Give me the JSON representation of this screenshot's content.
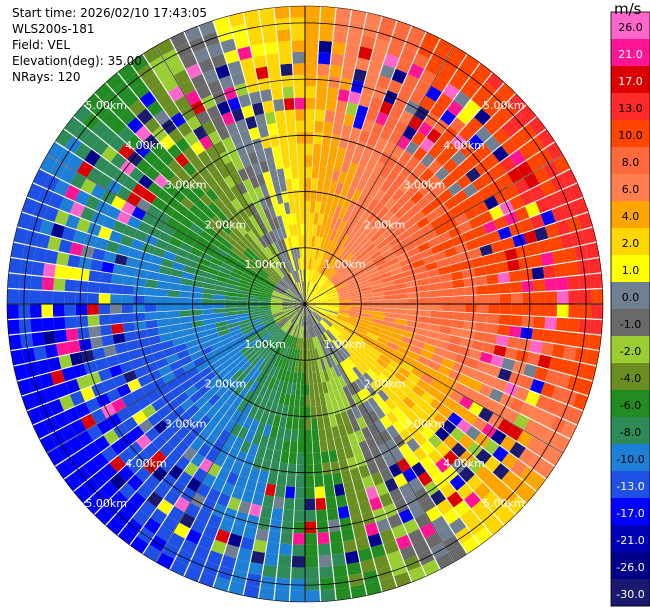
{
  "info": {
    "start_time": "Start time: 2026/02/10 17:43:05",
    "instrument": "WLS200s-181",
    "field": "Field: VEL",
    "elevation": "Elevation(deg): 35.00",
    "nrays": "NRays: 120"
  },
  "chart_data": {
    "type": "heatmap",
    "projection": "polar PPI",
    "field": "VEL",
    "units": "m/s",
    "range_rings_km": [
      "1.00km",
      "2.00km",
      "3.00km",
      "4.00km",
      "5.00km"
    ],
    "max_range_km": 5.3,
    "n_rays": 120,
    "colorbar": {
      "label": "m/s",
      "ticks": [
        "26.0",
        "21.0",
        "17.0",
        "13.0",
        "10.0",
        "8.0",
        "6.0",
        "4.0",
        "2.0",
        "1.0",
        "0.0",
        "-1.0",
        "-2.0",
        "-4.0",
        "-6.0",
        "-8.0",
        "-10.0",
        "-13.0",
        "-17.0",
        "-21.0",
        "-26.0",
        "-30.0"
      ],
      "bins": [
        {
          "min": 26,
          "max": 30,
          "color": "#ff66cc"
        },
        {
          "min": 21,
          "max": 26,
          "color": "#ff1493"
        },
        {
          "min": 17,
          "max": 21,
          "color": "#dc0000"
        },
        {
          "min": 13,
          "max": 17,
          "color": "#ff2a2a"
        },
        {
          "min": 10,
          "max": 13,
          "color": "#ff4500"
        },
        {
          "min": 8,
          "max": 10,
          "color": "#ff6a3d"
        },
        {
          "min": 6,
          "max": 8,
          "color": "#ff7f50"
        },
        {
          "min": 4,
          "max": 6,
          "color": "#ffa500"
        },
        {
          "min": 2,
          "max": 4,
          "color": "#ffd700"
        },
        {
          "min": 1,
          "max": 2,
          "color": "#ffff00"
        },
        {
          "min": 0,
          "max": 1,
          "color": "#708090"
        },
        {
          "min": -1,
          "max": 0,
          "color": "#696969"
        },
        {
          "min": -2,
          "max": -1,
          "color": "#9acd32"
        },
        {
          "min": -4,
          "max": -2,
          "color": "#6b8e23"
        },
        {
          "min": -6,
          "max": -4,
          "color": "#228b22"
        },
        {
          "min": -8,
          "max": -6,
          "color": "#2e8b57"
        },
        {
          "min": -10,
          "max": -8,
          "color": "#1e7fd6"
        },
        {
          "min": -13,
          "max": -10,
          "color": "#1e50e6"
        },
        {
          "min": -17,
          "max": -13,
          "color": "#0000ff"
        },
        {
          "min": -21,
          "max": -17,
          "color": "#0000b4"
        },
        {
          "min": -26,
          "max": -21,
          "color": "#00008b"
        },
        {
          "min": -30,
          "max": -26,
          "color": "#191970"
        }
      ]
    },
    "velocity_pattern": {
      "description_values_m_per_s": {
        "east_max": 11.5,
        "west_min": -9.5,
        "north_offset": 3.0,
        "south_offset": -5.0,
        "near_core": 0.5
      }
    }
  }
}
